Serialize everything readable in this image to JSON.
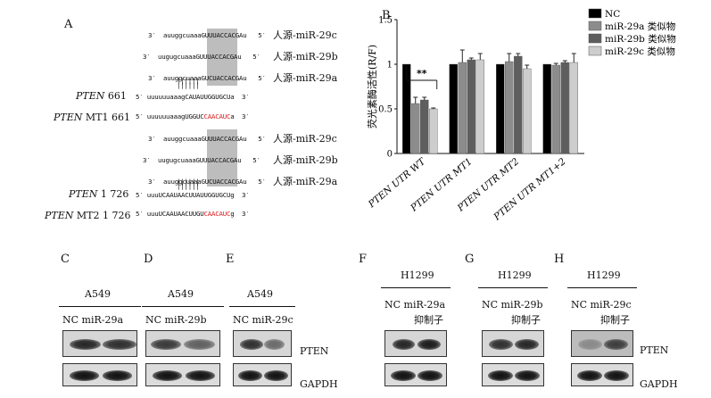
{
  "panel_a": {
    "letter": "A",
    "group1": [
      {
        "prime3": "3′",
        "pre": "auuggcuaaaGUUUACCACGAu",
        "red": "",
        "post": "",
        "prime5": "5′",
        "label": "人源-miR-29c"
      },
      {
        "prime3": "3′",
        "pre": "uugugcuaaaGUUUACCACGAu",
        "red": "",
        "post": "",
        "prime5": "5′",
        "label": "人源-miR-29b"
      },
      {
        "prime3": "3′",
        "pre": "auuggcuaaaGUCUACCACGAu",
        "red": "",
        "post": "",
        "prime5": "5′",
        "label": "人源-miR-29a"
      }
    ],
    "group1_target": {
      "prime5": "5′",
      "pre": "uuuuuuaaagCAUAUUGGUGCUa",
      "red": "",
      "post": "",
      "prime3": "3′"
    },
    "group1_mut": {
      "prime5": "5′",
      "pre": "uuuuuuaaagUGGUC",
      "red": "CAACAUC",
      "post": "a",
      "prime3": "3′"
    },
    "gene1": {
      "italic": "PTEN",
      "rest": " 661"
    },
    "gene1_mut": {
      "italic": "PTEN",
      "rest": " MT1 661"
    },
    "group2": [
      {
        "prime3": "3′",
        "pre": "auuggcuaaaGUUUACCACGAu",
        "red": "",
        "post": "",
        "prime5": "5′",
        "label": "人源-miR-29c"
      },
      {
        "prime3": "3′",
        "pre": "uugugcuaaaGUUUACCACGAu",
        "red": "",
        "post": "",
        "prime5": "5′",
        "label": "人源-miR-29b"
      },
      {
        "prime3": "3′",
        "pre": "auuggcuaaaGUCUACCACGAu",
        "red": "",
        "post": "",
        "prime5": "5′",
        "label": "人源-miR-29a"
      }
    ],
    "group2_target": {
      "prime5": "5′",
      "pre": "uuuUCAAUAACUUAUUGGUGCUg",
      "red": "",
      "post": "",
      "prime3": "3′"
    },
    "group2_mut": {
      "prime5": "5′",
      "pre": "uuuUCAAUAACUUGU",
      "red": "CAACAUC",
      "post": "g",
      "prime3": "3′"
    },
    "gene2": {
      "italic": "PTEN",
      "rest": " 1 726"
    },
    "gene2_mut": {
      "italic": "PTEN",
      "rest": " MT2 1 726"
    },
    "pairing": "||||||"
  },
  "panel_b": {
    "letter": "B",
    "significance": "**",
    "chart_data": {
      "type": "bar",
      "ylabel": "荧光素酶活性(R/F)",
      "ylim": [
        0,
        1.5
      ],
      "yticks": [
        0,
        0.5,
        1,
        1.5
      ],
      "ytick_labels": [
        "0",
        "0.5",
        "1",
        "1.5"
      ],
      "categories": [
        "PTEN UTR WT",
        "PTEN UTR MT1",
        "PTEN UTR MT2",
        "PTEN UTR MT1+2"
      ],
      "series": [
        {
          "name": "NC",
          "color": "#000000",
          "values": [
            1.0,
            1.0,
            1.0,
            1.0
          ],
          "errors": [
            0.0,
            0.0,
            0.0,
            0.0
          ]
        },
        {
          "name": "miR-29a 类似物",
          "color": "#8c8c8c",
          "values": [
            0.56,
            1.02,
            1.03,
            0.99
          ],
          "errors": [
            0.07,
            0.14,
            0.09,
            0.02
          ]
        },
        {
          "name": "miR-29b 类似物",
          "color": "#5e5e5e",
          "values": [
            0.6,
            1.05,
            1.09,
            1.02
          ],
          "errors": [
            0.03,
            0.02,
            0.03,
            0.02
          ]
        },
        {
          "name": "miR-29c 类似物",
          "color": "#cdcdcd",
          "values": [
            0.5,
            1.05,
            0.95,
            1.02
          ],
          "errors": [
            0.01,
            0.07,
            0.04,
            0.1
          ]
        }
      ],
      "legend_position": "top-right"
    }
  },
  "panels_blot": [
    {
      "letter": "C",
      "cell": "A549",
      "lanes": "NC miR-29a",
      "lanes2": ""
    },
    {
      "letter": "D",
      "cell": "A549",
      "lanes": "NC miR-29b",
      "lanes2": ""
    },
    {
      "letter": "E",
      "cell": "A549",
      "lanes": "NC miR-29c",
      "lanes2": ""
    },
    {
      "letter": "F",
      "cell": "H1299",
      "lanes": "NC miR-29a",
      "lanes2": "抑制子"
    },
    {
      "letter": "G",
      "cell": "H1299",
      "lanes": "NC miR-29b",
      "lanes2": "抑制子"
    },
    {
      "letter": "H",
      "cell": "H1299",
      "lanes": "NC miR-29c",
      "lanes2": "抑制子"
    }
  ],
  "blot_labels": {
    "pten": "PTEN",
    "gapdh": "GAPDH"
  }
}
